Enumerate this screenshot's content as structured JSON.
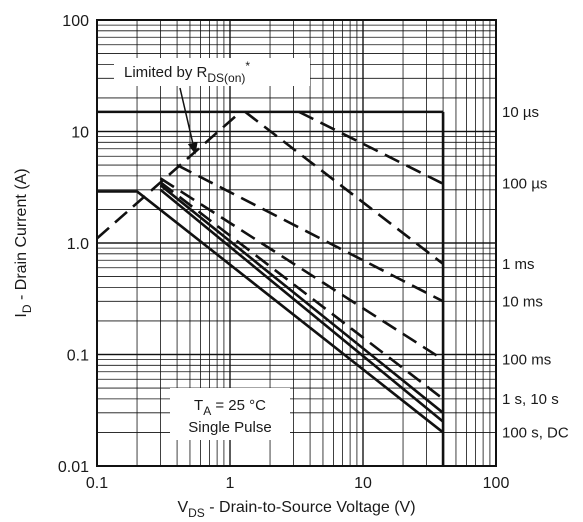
{
  "chart_data": {
    "type": "line",
    "log_x": true,
    "log_y": true,
    "xlim": [
      0.1,
      100
    ],
    "ylim": [
      0.01,
      100
    ],
    "x_ticks": [
      {
        "v": 0.1,
        "label": "0.1"
      },
      {
        "v": 1,
        "label": "1"
      },
      {
        "v": 10,
        "label": "10"
      },
      {
        "v": 100,
        "label": "100"
      }
    ],
    "y_ticks": [
      {
        "v": 0.01,
        "label": "0.01"
      },
      {
        "v": 0.1,
        "label": "0.1"
      },
      {
        "v": 1,
        "label": "1.0"
      },
      {
        "v": 10,
        "label": "10"
      },
      {
        "v": 100,
        "label": "100"
      }
    ],
    "grid": true,
    "xlabel": {
      "main": "V",
      "sub": "DS",
      "rest": " - Drain-to-Source Voltage (V)"
    },
    "ylabel": {
      "main": "I",
      "sub": "D",
      "rest": " - Drain Current (A)"
    },
    "annotation": {
      "main": "Limited by R",
      "sub": "DS(on)",
      "sup": "*",
      "arrow_to": {
        "x": 0.55,
        "y": 6.2
      }
    },
    "conditions": {
      "line1_main": "T",
      "line1_sub": "A",
      "line1_rest": " = 25 °C",
      "line2": "Single Pulse"
    },
    "series": [
      {
        "name": "10 µs",
        "style": "solid",
        "points": [
          [
            0.1,
            15
          ],
          [
            40,
            15
          ]
        ],
        "label_y": 15
      },
      {
        "name": "100 µs",
        "style": "dashed",
        "points": [
          [
            3.3,
            15
          ],
          [
            40,
            3.4
          ]
        ],
        "label_y": 3.4
      },
      {
        "name": "1 ms",
        "style": "dashed",
        "points": [
          [
            1.3,
            15
          ],
          [
            40,
            0.65
          ]
        ],
        "label_y": 0.65
      },
      {
        "name": "10 ms",
        "style": "dashed",
        "points": [
          [
            0.4,
            5
          ],
          [
            40,
            0.3
          ]
        ],
        "label_y": 0.3
      },
      {
        "name": "100 ms",
        "style": "dashed",
        "points": [
          [
            0.3,
            3.8
          ],
          [
            40,
            0.09
          ]
        ],
        "label_y": 0.09
      },
      {
        "name": "1 s, 10 s",
        "style": "dashed",
        "points": [
          [
            0.3,
            3.5
          ],
          [
            40,
            0.04
          ]
        ],
        "label_y": 0.04
      },
      {
        "name": "",
        "style": "solid",
        "points": [
          [
            0.3,
            3.3
          ],
          [
            40,
            0.03
          ]
        ],
        "label_y": null
      },
      {
        "name": "",
        "style": "solid",
        "points": [
          [
            0.3,
            3.0
          ],
          [
            40,
            0.025
          ]
        ],
        "label_y": null
      },
      {
        "name": "100 s, DC",
        "style": "solid",
        "points": [
          [
            0.1,
            2.9
          ],
          [
            0.2,
            2.9
          ],
          [
            40,
            0.02
          ]
        ],
        "label_y": 0.02
      },
      {
        "name": "",
        "style": "solid",
        "points": [
          [
            40,
            15
          ],
          [
            40,
            0.01
          ]
        ],
        "label_y": null
      },
      {
        "name": "",
        "style": "dashed",
        "points": [
          [
            0.1,
            1.1
          ],
          [
            1.2,
            15
          ]
        ],
        "label_y": null
      }
    ]
  }
}
